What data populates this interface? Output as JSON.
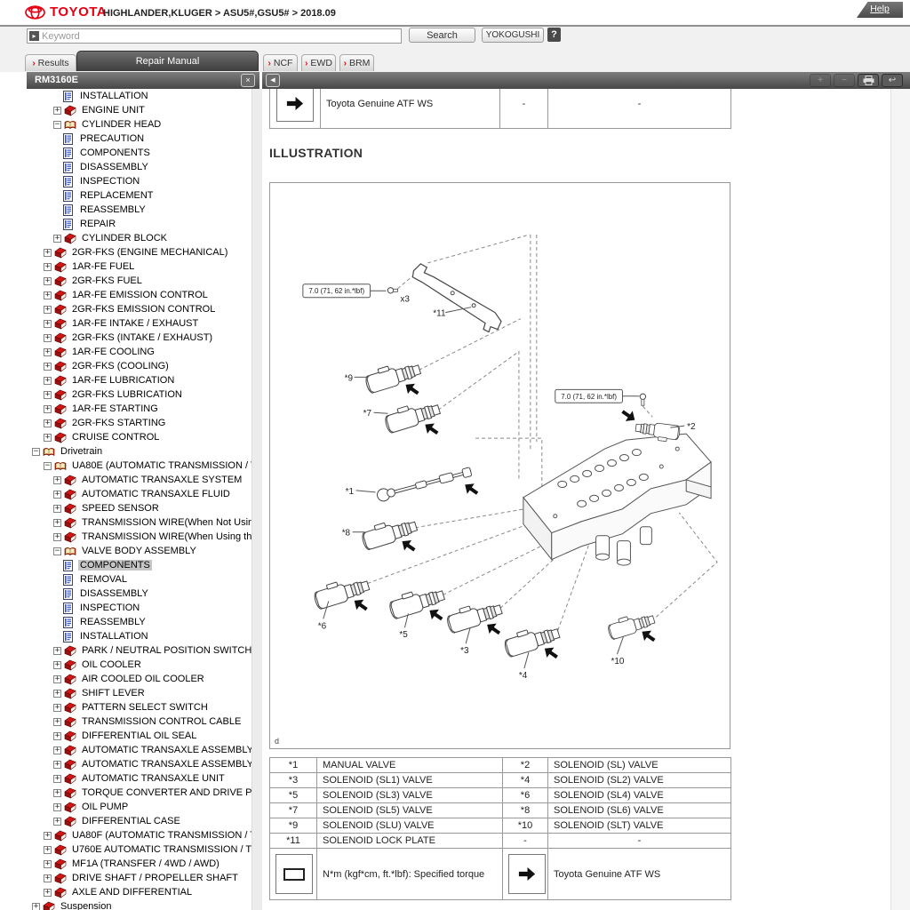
{
  "header": {
    "brand": "TOYOTA",
    "breadcrumb": "HIGHLANDER,KLUGER > ASU5#,GSU5# > 2018.09",
    "help_label": "Help"
  },
  "search": {
    "placeholder": "Keyword",
    "search_button": "Search",
    "yokogushi_button": "YOKOGUSHI",
    "help_icon": "?"
  },
  "tabs": {
    "marker": "›",
    "results": "Results",
    "repair_manual": "Repair Manual",
    "ncf": "NCF",
    "ewd": "EWD",
    "brm": "BRM"
  },
  "sidebar": {
    "title": "RM3160E",
    "close_glyph": "×",
    "tree": [
      {
        "label": "INSTALLATION",
        "level": 4,
        "icon": "doc"
      },
      {
        "label": "ENGINE UNIT",
        "level": 3,
        "icon": "book",
        "expand": "plus"
      },
      {
        "label": "CYLINDER HEAD",
        "level": 3,
        "icon": "openbook",
        "expand": "minus"
      },
      {
        "label": "PRECAUTION",
        "level": 4,
        "icon": "doc"
      },
      {
        "label": "COMPONENTS",
        "level": 4,
        "icon": "doc"
      },
      {
        "label": "DISASSEMBLY",
        "level": 4,
        "icon": "doc"
      },
      {
        "label": "INSPECTION",
        "level": 4,
        "icon": "doc"
      },
      {
        "label": "REPLACEMENT",
        "level": 4,
        "icon": "doc"
      },
      {
        "label": "REASSEMBLY",
        "level": 4,
        "icon": "doc"
      },
      {
        "label": "REPAIR",
        "level": 4,
        "icon": "doc"
      },
      {
        "label": "CYLINDER BLOCK",
        "level": 3,
        "icon": "book",
        "expand": "plus"
      },
      {
        "label": "2GR-FKS (ENGINE MECHANICAL)",
        "level": 2,
        "icon": "book",
        "expand": "plus"
      },
      {
        "label": "1AR-FE FUEL",
        "level": 2,
        "icon": "book",
        "expand": "plus"
      },
      {
        "label": "2GR-FKS FUEL",
        "level": 2,
        "icon": "book",
        "expand": "plus"
      },
      {
        "label": "1AR-FE EMISSION CONTROL",
        "level": 2,
        "icon": "book",
        "expand": "plus"
      },
      {
        "label": "2GR-FKS EMISSION CONTROL",
        "level": 2,
        "icon": "book",
        "expand": "plus"
      },
      {
        "label": "1AR-FE INTAKE / EXHAUST",
        "level": 2,
        "icon": "book",
        "expand": "plus"
      },
      {
        "label": "2GR-FKS (INTAKE / EXHAUST)",
        "level": 2,
        "icon": "book",
        "expand": "plus"
      },
      {
        "label": "1AR-FE COOLING",
        "level": 2,
        "icon": "book",
        "expand": "plus"
      },
      {
        "label": "2GR-FKS (COOLING)",
        "level": 2,
        "icon": "book",
        "expand": "plus"
      },
      {
        "label": "1AR-FE LUBRICATION",
        "level": 2,
        "icon": "book",
        "expand": "plus"
      },
      {
        "label": "2GR-FKS LUBRICATION",
        "level": 2,
        "icon": "book",
        "expand": "plus"
      },
      {
        "label": "1AR-FE STARTING",
        "level": 2,
        "icon": "book",
        "expand": "plus"
      },
      {
        "label": "2GR-FKS STARTING",
        "level": 2,
        "icon": "book",
        "expand": "plus"
      },
      {
        "label": "CRUISE CONTROL",
        "level": 2,
        "icon": "book",
        "expand": "plus"
      },
      {
        "label": "Drivetrain",
        "level": 1,
        "icon": "openbook",
        "expand": "minus"
      },
      {
        "label": "UA80E (AUTOMATIC TRANSMISSION / TRANSAXLE)",
        "level": 2,
        "icon": "openbook",
        "expand": "minus"
      },
      {
        "label": "AUTOMATIC TRANSAXLE SYSTEM",
        "level": 3,
        "icon": "book",
        "expand": "plus"
      },
      {
        "label": "AUTOMATIC TRANSAXLE FLUID",
        "level": 3,
        "icon": "book",
        "expand": "plus"
      },
      {
        "label": "SPEED SENSOR",
        "level": 3,
        "icon": "book",
        "expand": "plus"
      },
      {
        "label": "TRANSMISSION WIRE(When Not Using the Engine",
        "level": 3,
        "icon": "book",
        "expand": "plus"
      },
      {
        "label": "TRANSMISSION WIRE(When Using the Engine Sup",
        "level": 3,
        "icon": "book",
        "expand": "plus"
      },
      {
        "label": "VALVE BODY ASSEMBLY",
        "level": 3,
        "icon": "openbook",
        "expand": "minus"
      },
      {
        "label": "COMPONENTS",
        "level": 4,
        "icon": "doc",
        "selected": true
      },
      {
        "label": "REMOVAL",
        "level": 4,
        "icon": "doc"
      },
      {
        "label": "DISASSEMBLY",
        "level": 4,
        "icon": "doc"
      },
      {
        "label": "INSPECTION",
        "level": 4,
        "icon": "doc"
      },
      {
        "label": "REASSEMBLY",
        "level": 4,
        "icon": "doc"
      },
      {
        "label": "INSTALLATION",
        "level": 4,
        "icon": "doc"
      },
      {
        "label": "PARK / NEUTRAL POSITION SWITCH",
        "level": 3,
        "icon": "book",
        "expand": "plus"
      },
      {
        "label": "OIL COOLER",
        "level": 3,
        "icon": "book",
        "expand": "plus"
      },
      {
        "label": "AIR COOLED OIL COOLER",
        "level": 3,
        "icon": "book",
        "expand": "plus"
      },
      {
        "label": "SHIFT LEVER",
        "level": 3,
        "icon": "book",
        "expand": "plus"
      },
      {
        "label": "PATTERN SELECT SWITCH",
        "level": 3,
        "icon": "book",
        "expand": "plus"
      },
      {
        "label": "TRANSMISSION CONTROL CABLE",
        "level": 3,
        "icon": "book",
        "expand": "plus"
      },
      {
        "label": "DIFFERENTIAL OIL SEAL",
        "level": 3,
        "icon": "book",
        "expand": "plus"
      },
      {
        "label": "AUTOMATIC TRANSAXLE ASSEMBLY(When Not Usi",
        "level": 3,
        "icon": "book",
        "expand": "plus"
      },
      {
        "label": "AUTOMATIC TRANSAXLE ASSEMBLY(When Using t",
        "level": 3,
        "icon": "book",
        "expand": "plus"
      },
      {
        "label": "AUTOMATIC TRANSAXLE UNIT",
        "level": 3,
        "icon": "book",
        "expand": "plus"
      },
      {
        "label": "TORQUE CONVERTER AND DRIVE PLATE",
        "level": 3,
        "icon": "book",
        "expand": "plus"
      },
      {
        "label": "OIL PUMP",
        "level": 3,
        "icon": "book",
        "expand": "plus"
      },
      {
        "label": "DIFFERENTIAL CASE",
        "level": 3,
        "icon": "book",
        "expand": "plus"
      },
      {
        "label": "UA80F (AUTOMATIC TRANSMISSION / TRANSAXLE)",
        "level": 2,
        "icon": "book",
        "expand": "plus"
      },
      {
        "label": "U760E AUTOMATIC TRANSMISSION / TRANSAXLE",
        "level": 2,
        "icon": "book",
        "expand": "plus"
      },
      {
        "label": "MF1A (TRANSFER / 4WD / AWD)",
        "level": 2,
        "icon": "book",
        "expand": "plus"
      },
      {
        "label": "DRIVE SHAFT / PROPELLER SHAFT",
        "level": 2,
        "icon": "book",
        "expand": "plus"
      },
      {
        "label": "AXLE AND DIFFERENTIAL",
        "level": 2,
        "icon": "book",
        "expand": "plus"
      },
      {
        "label": "Suspension",
        "level": 1,
        "icon": "book",
        "expand": "plus"
      }
    ]
  },
  "toolbar": {
    "back_glyph": "◀",
    "zoom_in": "+",
    "zoom_out": "−",
    "return_glyph": "↩"
  },
  "content": {
    "top_table": {
      "name": "Toyota Genuine ATF WS",
      "col3": "-",
      "col4": "-"
    },
    "heading": "ILLUSTRATION",
    "illustration": {
      "torque_label": "7.0 (71, 62 in.*lbf)",
      "bolt_count": "x3",
      "corner_letter": "d",
      "labels": {
        "p1": "*1",
        "p2": "*2",
        "p3": "*3",
        "p4": "*4",
        "p5": "*5",
        "p6": "*6",
        "p7": "*7",
        "p8": "*8",
        "p9": "*9",
        "p10": "*10",
        "p11": "*11"
      }
    },
    "parts_table": {
      "rows": [
        [
          "*1",
          "MANUAL VALVE",
          "*2",
          "SOLENOID (SL) VALVE"
        ],
        [
          "*3",
          "SOLENOID (SL1) VALVE",
          "*4",
          "SOLENOID (SL2) VALVE"
        ],
        [
          "*5",
          "SOLENOID (SL3) VALVE",
          "*6",
          "SOLENOID (SL4) VALVE"
        ],
        [
          "*7",
          "SOLENOID (SL5) VALVE",
          "*8",
          "SOLENOID (SL6) VALVE"
        ],
        [
          "*9",
          "SOLENOID (SLU) VALVE",
          "*10",
          "SOLENOID (SLT) VALVE"
        ],
        [
          "*11",
          "SOLENOID LOCK PLATE",
          "-",
          "-"
        ]
      ]
    },
    "legend": {
      "torque_text": "N*m (kgf*cm, ft.*lbf): Specified torque",
      "atf_text": "Toyota Genuine ATF WS"
    }
  }
}
